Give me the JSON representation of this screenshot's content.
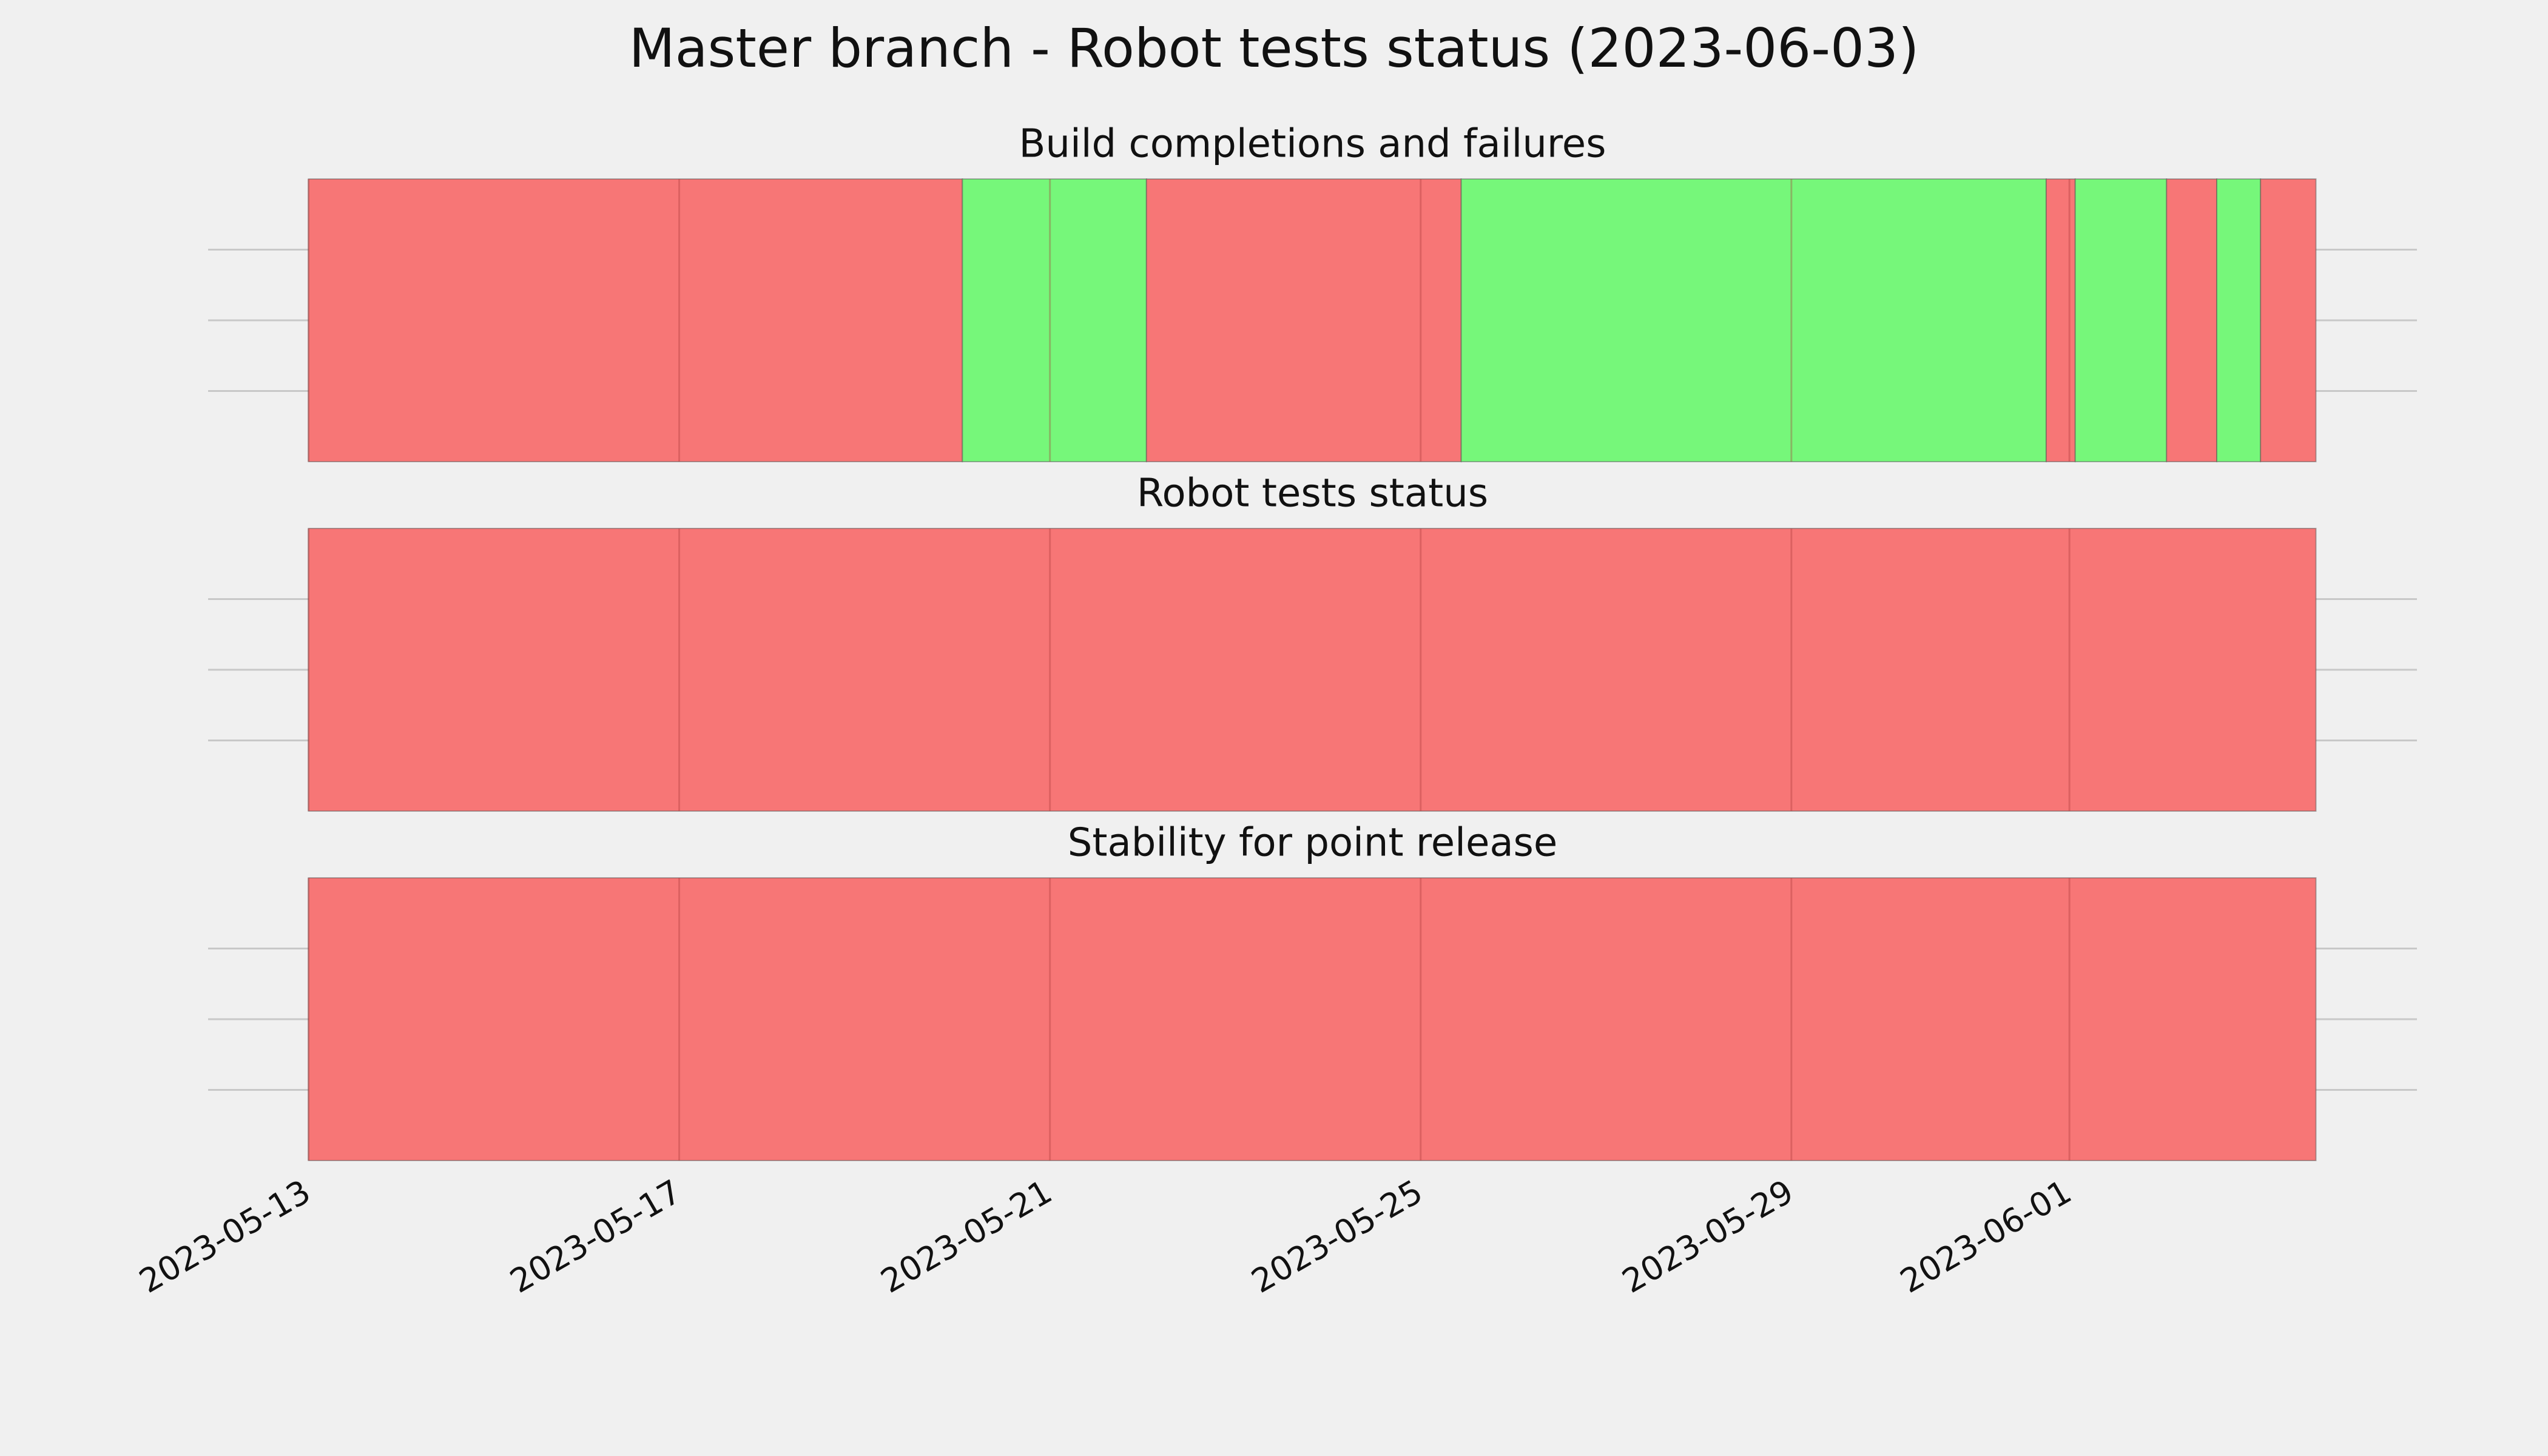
{
  "title": "Master branch - Robot tests status (2023-06-03)",
  "chart_data": [
    {
      "type": "timeline",
      "title": "Build completions and failures",
      "x_start": [
        "2023-05-13T00:00",
        "2023-05-20T01:20",
        "2023-05-22T01:00",
        "2023-05-25T10:30",
        "2023-05-31T18:00",
        "2023-06-01T01:30",
        "2023-06-02T01:10",
        "2023-06-02T14:10",
        "2023-06-03T01:30"
      ],
      "x_end": [
        "2023-05-20T01:20",
        "2023-05-22T01:00",
        "2023-05-25T10:30",
        "2023-05-31T18:00",
        "2023-06-01T01:30",
        "2023-06-02T01:10",
        "2023-06-02T14:10",
        "2023-06-03T01:30",
        "2023-06-03T15:50"
      ],
      "colors": [
        "#f77676",
        "#76f77a",
        "#f77676",
        "#76f77a",
        "#f77676",
        "#76f77a",
        "#f77676",
        "#76f77a",
        "#f77676"
      ],
      "xlim": [
        "2023-05-11T22:00",
        "2023-06-04T18:00"
      ],
      "xticks": [
        "2023-05-13",
        "2023-05-17",
        "2023-05-21",
        "2023-05-25",
        "2023-05-29",
        "2023-06-01"
      ],
      "ylim": [
        0,
        1
      ],
      "yticks": [
        0.25,
        0.5,
        0.75
      ],
      "grid": true
    },
    {
      "type": "timeline",
      "title": "Robot tests status",
      "x_start": [
        "2023-05-13T00:00"
      ],
      "x_end": [
        "2023-06-03T15:50"
      ],
      "colors": [
        "#f77676"
      ],
      "xlim": [
        "2023-05-11T22:00",
        "2023-06-04T18:00"
      ],
      "xticks": [
        "2023-05-13",
        "2023-05-17",
        "2023-05-21",
        "2023-05-25",
        "2023-05-29",
        "2023-06-01"
      ],
      "ylim": [
        0,
        1
      ],
      "yticks": [
        0.25,
        0.5,
        0.75
      ],
      "grid": true
    },
    {
      "type": "timeline",
      "title": "Stability for point release",
      "x_start": [
        "2023-05-13T00:00"
      ],
      "x_end": [
        "2023-06-03T15:50"
      ],
      "colors": [
        "#f77676"
      ],
      "xlim": [
        "2023-05-11T22:00",
        "2023-06-04T18:00"
      ],
      "xticks": [
        "2023-05-13",
        "2023-05-17",
        "2023-05-21",
        "2023-05-25",
        "2023-05-29",
        "2023-06-01"
      ],
      "ylim": [
        0,
        1
      ],
      "yticks": [
        0.25,
        0.5,
        0.75
      ],
      "grid": true
    }
  ]
}
